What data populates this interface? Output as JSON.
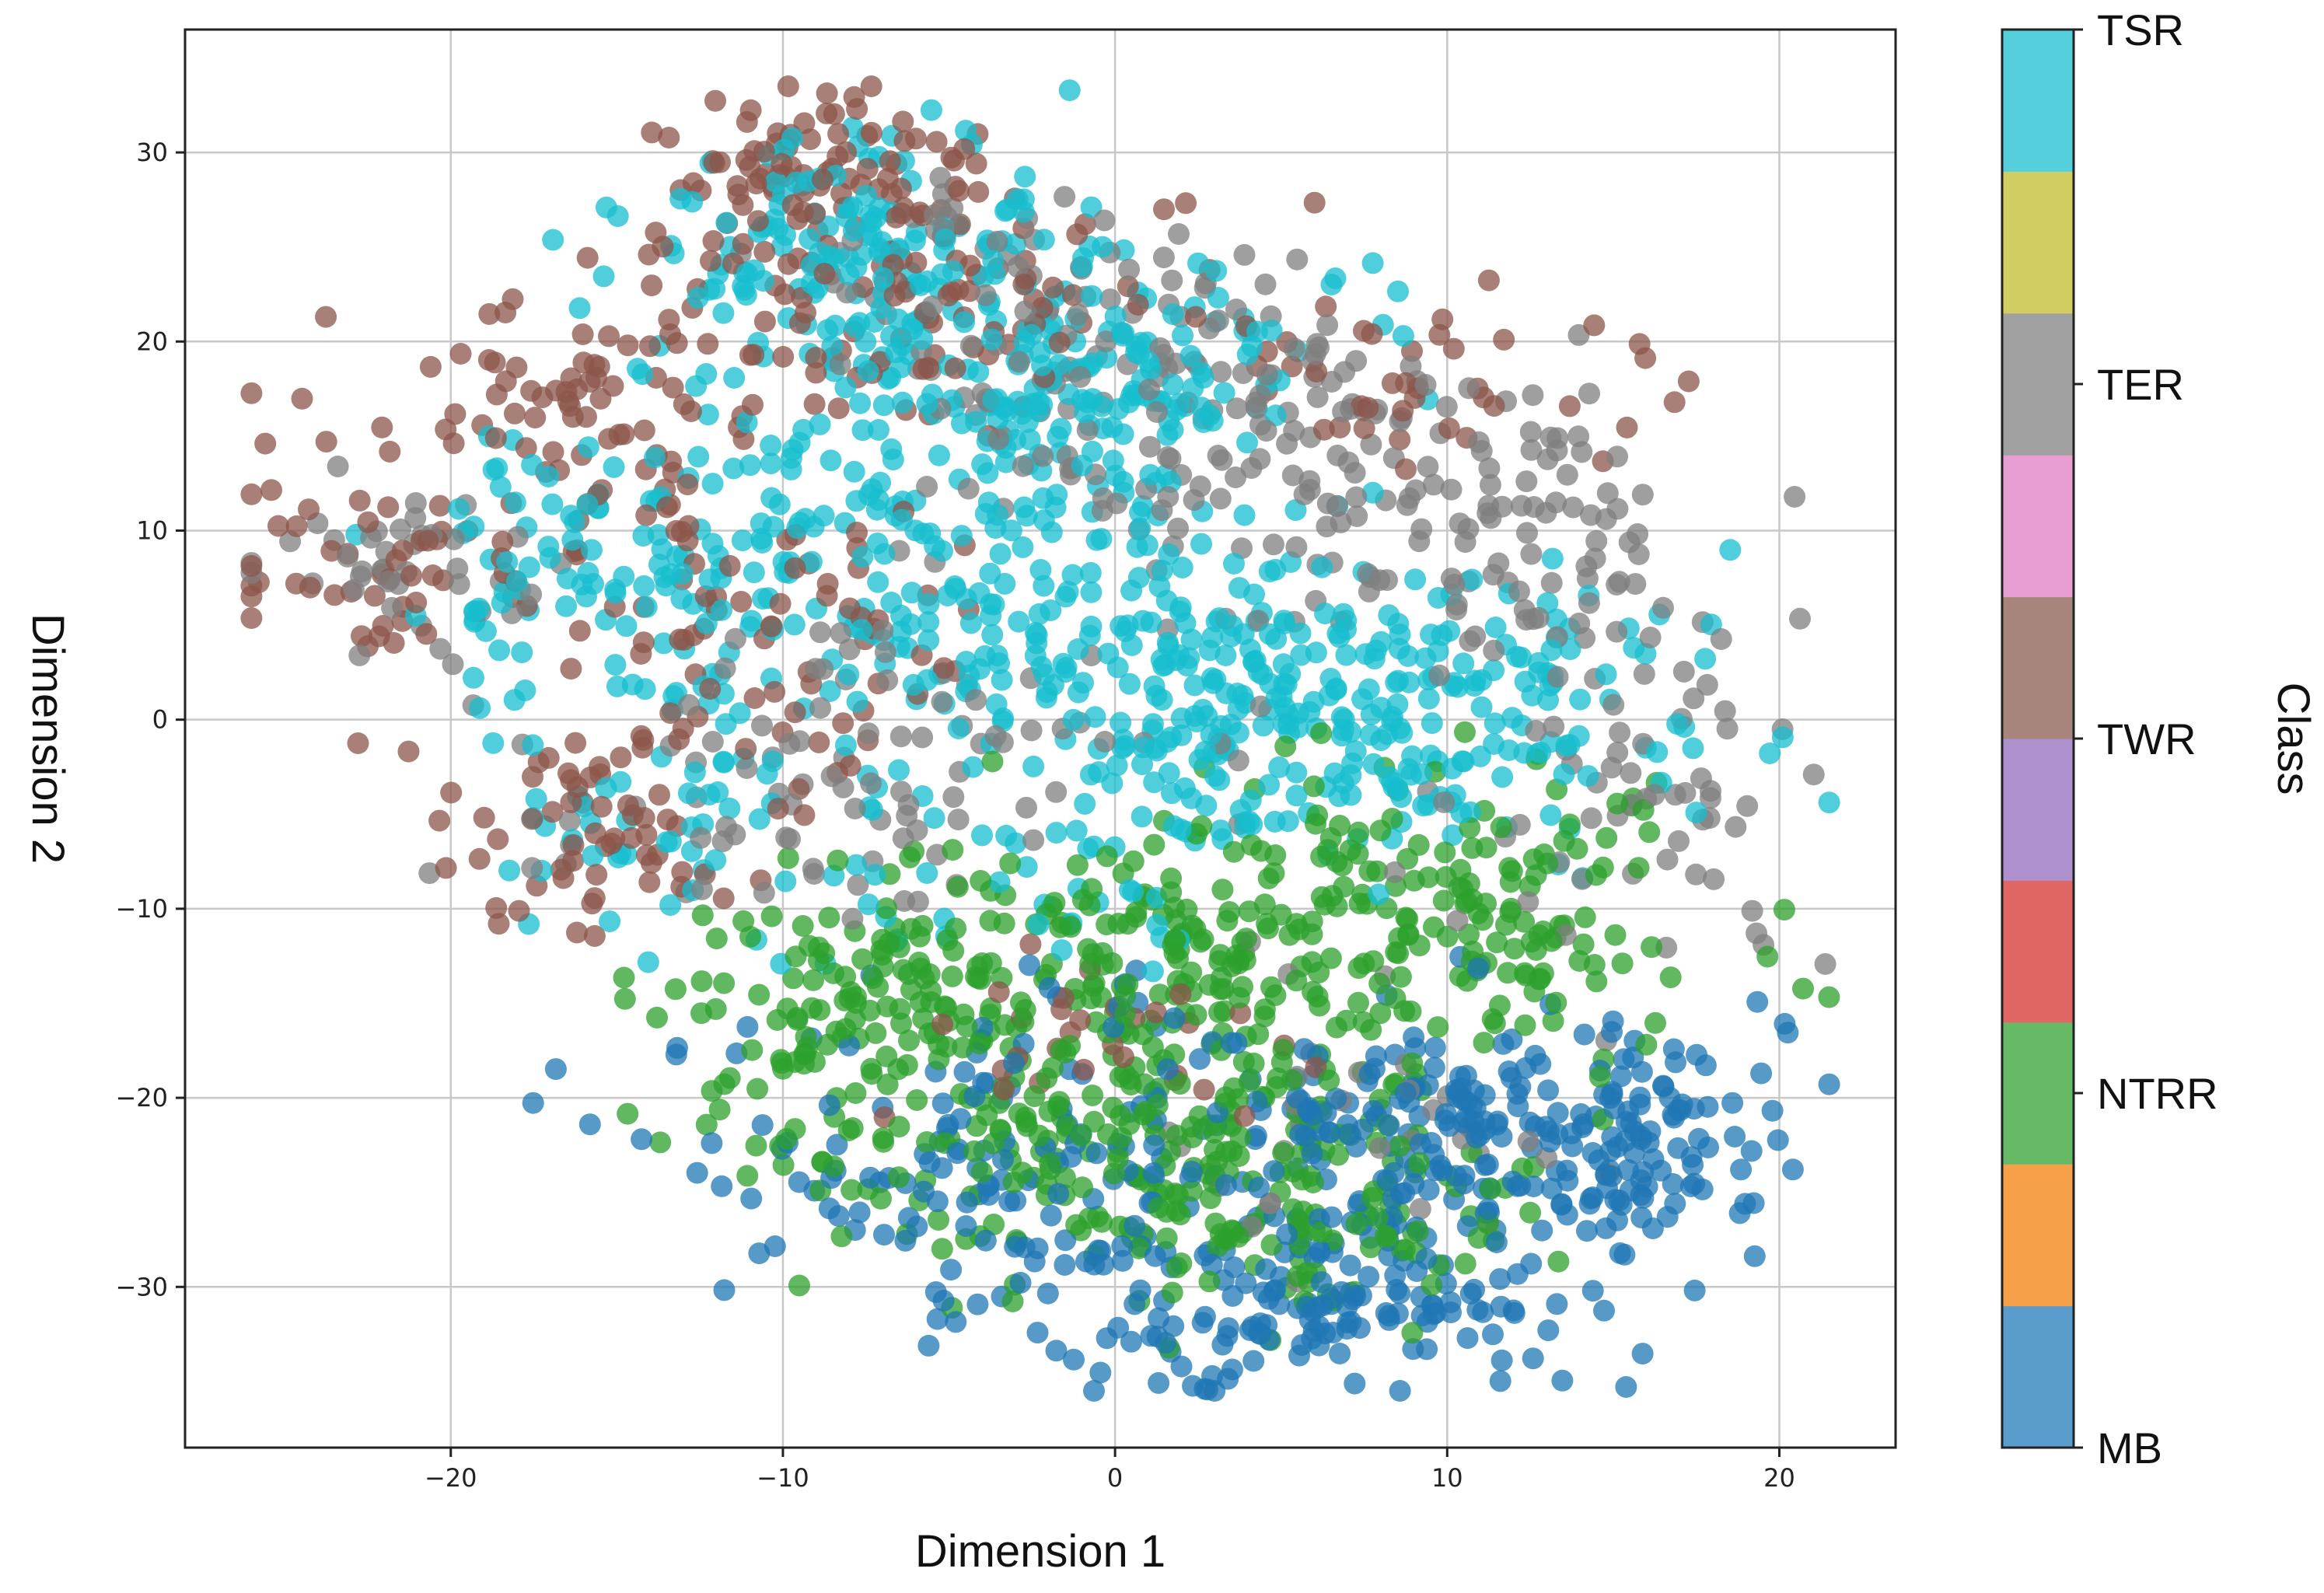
{
  "chart_data": {
    "type": "scatter",
    "title": "",
    "xlabel": "Dimension 1",
    "ylabel": "Dimension 2",
    "xlim": [
      -28,
      23.5
    ],
    "ylim": [
      -38.5,
      36.5
    ],
    "xticks": [
      -20,
      -10,
      0,
      10,
      20
    ],
    "yticks": [
      -30,
      -20,
      -10,
      0,
      10,
      20,
      30
    ],
    "xtick_labels": [
      "−20",
      "−10",
      "0",
      "10",
      "20"
    ],
    "ytick_labels": [
      "−30",
      "−20",
      "−10",
      "0",
      "10",
      "20",
      "30"
    ],
    "grid": true,
    "marker_alpha": 0.75,
    "colorbar": {
      "title": "Class",
      "segment_colors": [
        "#5a9ccc",
        "#f7a04a",
        "#66b965",
        "#e06664",
        "#ad90cd",
        "#a8857c",
        "#e89ed3",
        "#a0a0a0",
        "#d2cd62",
        "#56cfdc"
      ],
      "tick_labels": [
        "MB",
        "NTRR",
        "TWR",
        "TER",
        "TSR"
      ],
      "tick_values": [
        0,
        2.5,
        5,
        7.5,
        10
      ]
    },
    "series": [
      {
        "name": "MB",
        "color": "#1f77b4",
        "clusters": [
          {
            "center": [
              11,
              -22
            ],
            "spread": [
              4.5,
              3.5
            ],
            "count": 230
          },
          {
            "center": [
              6,
              -31
            ],
            "spread": [
              4.5,
              2.5
            ],
            "count": 160
          },
          {
            "center": [
              -4,
              -24
            ],
            "spread": [
              5,
              3.5
            ],
            "count": 110
          },
          {
            "center": [
              16,
              -22
            ],
            "spread": [
              1.5,
              2
            ],
            "count": 40
          },
          {
            "center": [
              2,
              -18
            ],
            "spread": [
              6,
              3
            ],
            "count": 40
          }
        ]
      },
      {
        "name": "NTRR",
        "color": "#2ca02c",
        "clusters": [
          {
            "center": [
              -1,
              -20
            ],
            "spread": [
              5.5,
              4
            ],
            "count": 240
          },
          {
            "center": [
              4,
              -12
            ],
            "spread": [
              6,
              4
            ],
            "count": 200
          },
          {
            "center": [
              -7,
              -14
            ],
            "spread": [
              3.5,
              3
            ],
            "count": 90
          },
          {
            "center": [
              5,
              -26
            ],
            "spread": [
              4,
              3
            ],
            "count": 110
          },
          {
            "center": [
              11,
              -10
            ],
            "spread": [
              3.5,
              4
            ],
            "count": 90
          }
        ]
      },
      {
        "name": "TWR",
        "color": "#8c564b",
        "clusters": [
          {
            "center": [
              -9,
              29
            ],
            "spread": [
              2.5,
              2
            ],
            "count": 80
          },
          {
            "center": [
              -6,
              23
            ],
            "spread": [
              5,
              3
            ],
            "count": 110
          },
          {
            "center": [
              -17,
              15
            ],
            "spread": [
              3.5,
              3.5
            ],
            "count": 80
          },
          {
            "center": [
              -22,
              8
            ],
            "spread": [
              2.5,
              2
            ],
            "count": 40
          },
          {
            "center": [
              -16,
              -6
            ],
            "spread": [
              2.5,
              3
            ],
            "count": 60
          },
          {
            "center": [
              -11,
              5
            ],
            "spread": [
              4,
              6
            ],
            "count": 80
          },
          {
            "center": [
              9,
              18
            ],
            "spread": [
              4,
              3
            ],
            "count": 40
          },
          {
            "center": [
              -1,
              -17
            ],
            "spread": [
              3,
              2.5
            ],
            "count": 30
          }
        ]
      },
      {
        "name": "TER",
        "color": "#7f7f7f",
        "clusters": [
          {
            "center": [
              2,
              16
            ],
            "spread": [
              4.5,
              4
            ],
            "count": 120
          },
          {
            "center": [
              10,
              10
            ],
            "spread": [
              4,
              4
            ],
            "count": 120
          },
          {
            "center": [
              16,
              -4
            ],
            "spread": [
              2.5,
              4
            ],
            "count": 60
          },
          {
            "center": [
              -8,
              -3
            ],
            "spread": [
              5,
              4
            ],
            "count": 90
          },
          {
            "center": [
              -21,
              8
            ],
            "spread": [
              2.5,
              2.5
            ],
            "count": 40
          },
          {
            "center": [
              -2,
              24
            ],
            "spread": [
              4,
              2.5
            ],
            "count": 40
          },
          {
            "center": [
              8,
              -22
            ],
            "spread": [
              3,
              4
            ],
            "count": 30
          }
        ]
      },
      {
        "name": "TSR",
        "color": "#17becf",
        "clusters": [
          {
            "center": [
              -8,
              25
            ],
            "spread": [
              3.5,
              3
            ],
            "count": 150
          },
          {
            "center": [
              -1,
              18
            ],
            "spread": [
              4,
              3
            ],
            "count": 170
          },
          {
            "center": [
              7,
              1
            ],
            "spread": [
              5,
              4
            ],
            "count": 280
          },
          {
            "center": [
              -9,
              8
            ],
            "spread": [
              5,
              5
            ],
            "count": 170
          },
          {
            "center": [
              -16,
              9
            ],
            "spread": [
              3,
              3
            ],
            "count": 60
          },
          {
            "center": [
              0,
              5
            ],
            "spread": [
              4,
              4
            ],
            "count": 90
          },
          {
            "center": [
              -14,
              -5
            ],
            "spread": [
              2.5,
              3
            ],
            "count": 40
          },
          {
            "center": [
              -3,
              -8
            ],
            "spread": [
              5,
              3
            ],
            "count": 60
          }
        ]
      }
    ]
  }
}
